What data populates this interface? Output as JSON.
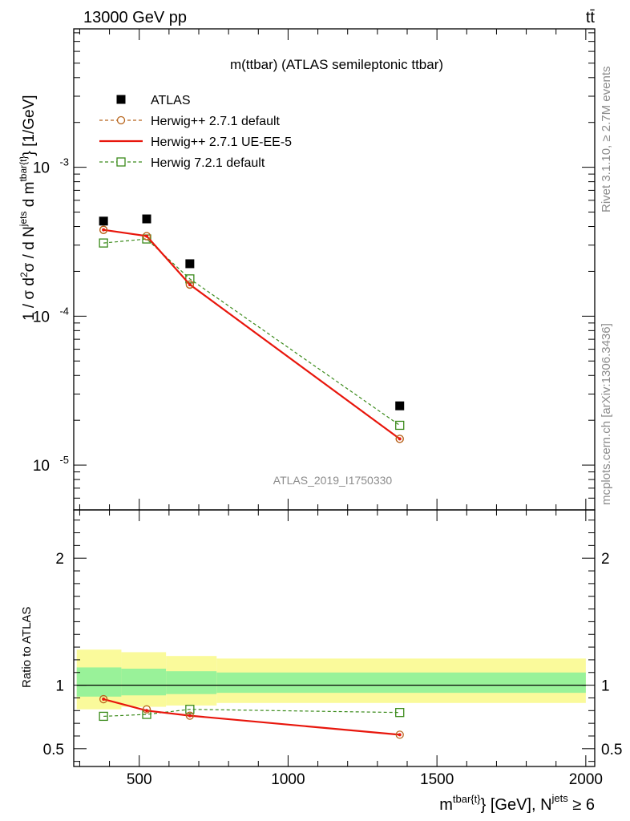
{
  "header": {
    "energy_label": "13000 GeV pp",
    "process_label": "tt̄",
    "rivet_label": "Rivet 3.1.10, ≥ 2.7M events",
    "mcplots_label": "mcplots.cern.ch [arXiv:1306.3436]",
    "analysis_id": "ATLAS_2019_I1750330"
  },
  "colors": {
    "atlas": "#000000",
    "herwig_pp_default": "#b8651d",
    "herwig_pp_ueee5": "#e8160c",
    "herwig_721": "#3a8a1a",
    "band_inner": "#99f299",
    "band_outer": "#fafa9b"
  },
  "chart_data": [
    {
      "type": "scatter",
      "title": "m(ttbar) (ATLAS semileptonic ttbar)",
      "ylabel_main": "1 / σ d",
      "ylabel_sup": "2",
      "ylabel_tail": "σ / d N",
      "ylabel_jets": "jets",
      "ylabel_dm": " d m",
      "ylabel_ttbar": "tbar{t}",
      "ylabel_unit": "} [1/GeV]",
      "yscale": "log",
      "ylim": [
        5e-06,
        0.0085
      ],
      "xlim": [
        280,
        2030
      ],
      "ytick_labels": [
        {
          "base": "10",
          "exp": "-3",
          "value": 0.001
        },
        {
          "base": "10",
          "exp": "-4",
          "value": 0.0001
        },
        {
          "base": "10",
          "exp": "-5",
          "value": 1e-05
        }
      ],
      "legend": {
        "placement": "top-left",
        "entries": [
          {
            "key": "atlas",
            "label": "ATLAS"
          },
          {
            "key": "herwig_pp_default",
            "label": "Herwig++ 2.7.1 default"
          },
          {
            "key": "herwig_pp_ueee5",
            "label": "Herwig++ 2.7.1 UE-EE-5"
          },
          {
            "key": "herwig_721",
            "label": "Herwig 7.2.1 default"
          }
        ]
      },
      "series": [
        {
          "key": "atlas",
          "name": "ATLAS",
          "x": [
            380,
            525,
            670,
            1375
          ],
          "y": [
            0.000435,
            0.00045,
            0.000225,
            2.5e-05
          ]
        },
        {
          "key": "herwig_pp_default",
          "name": "Herwig++ 2.7.1 default",
          "x": [
            380,
            525,
            670,
            1375
          ],
          "y": [
            0.00038,
            0.000345,
            0.000163,
            1.5e-05
          ]
        },
        {
          "key": "herwig_pp_ueee5",
          "name": "Herwig++ 2.7.1 UE-EE-5",
          "x": [
            380,
            525,
            670,
            1375
          ],
          "y": [
            0.00038,
            0.000345,
            0.000163,
            1.5e-05
          ]
        },
        {
          "key": "herwig_721",
          "name": "Herwig 7.2.1 default",
          "x": [
            380,
            525,
            670,
            1375
          ],
          "y": [
            0.00031,
            0.00033,
            0.000178,
            1.85e-05
          ]
        }
      ]
    },
    {
      "type": "scatter",
      "ylabel": "Ratio to ATLAS",
      "xlabel_main": "m",
      "xlabel_sup": "tbar{t}",
      "xlabel_tail": "} [GeV], N",
      "xlabel_jets": "jets",
      "xlabel_end": " ≥ 6",
      "xlim": [
        280,
        2030
      ],
      "ylim": [
        0.36,
        2.38
      ],
      "xtick_labels": [
        "500",
        "1000",
        "1500",
        "2000"
      ],
      "xtick_values": [
        500,
        1000,
        1500,
        2000
      ],
      "ytick_labels": [
        "0.5",
        "1",
        "2"
      ],
      "ytick_values": [
        0.5,
        1,
        2
      ],
      "bands": {
        "x_edges": [
          [
            290,
            440
          ],
          [
            440,
            590
          ],
          [
            590,
            760
          ],
          [
            760,
            2000
          ]
        ],
        "outer": [
          [
            0.81,
            1.28
          ],
          [
            0.83,
            1.26
          ],
          [
            0.84,
            1.23
          ],
          [
            0.86,
            1.21
          ]
        ],
        "inner": [
          [
            0.91,
            1.14
          ],
          [
            0.92,
            1.13
          ],
          [
            0.93,
            1.11
          ],
          [
            0.94,
            1.1
          ]
        ]
      },
      "series": [
        {
          "key": "herwig_pp_default",
          "name": "Herwig++ 2.7.1 default",
          "x": [
            380,
            525,
            670,
            1375
          ],
          "y": [
            0.89,
            0.81,
            0.76,
            0.61
          ]
        },
        {
          "key": "herwig_pp_ueee5",
          "name": "Herwig++ 2.7.1 UE-EE-5",
          "x": [
            380,
            525,
            670,
            1375
          ],
          "y": [
            0.89,
            0.8,
            0.76,
            0.61
          ]
        },
        {
          "key": "herwig_721",
          "name": "Herwig 7.2.1 default",
          "x": [
            380,
            525,
            670,
            1375
          ],
          "y": [
            0.755,
            0.77,
            0.81,
            0.785
          ]
        }
      ]
    }
  ]
}
